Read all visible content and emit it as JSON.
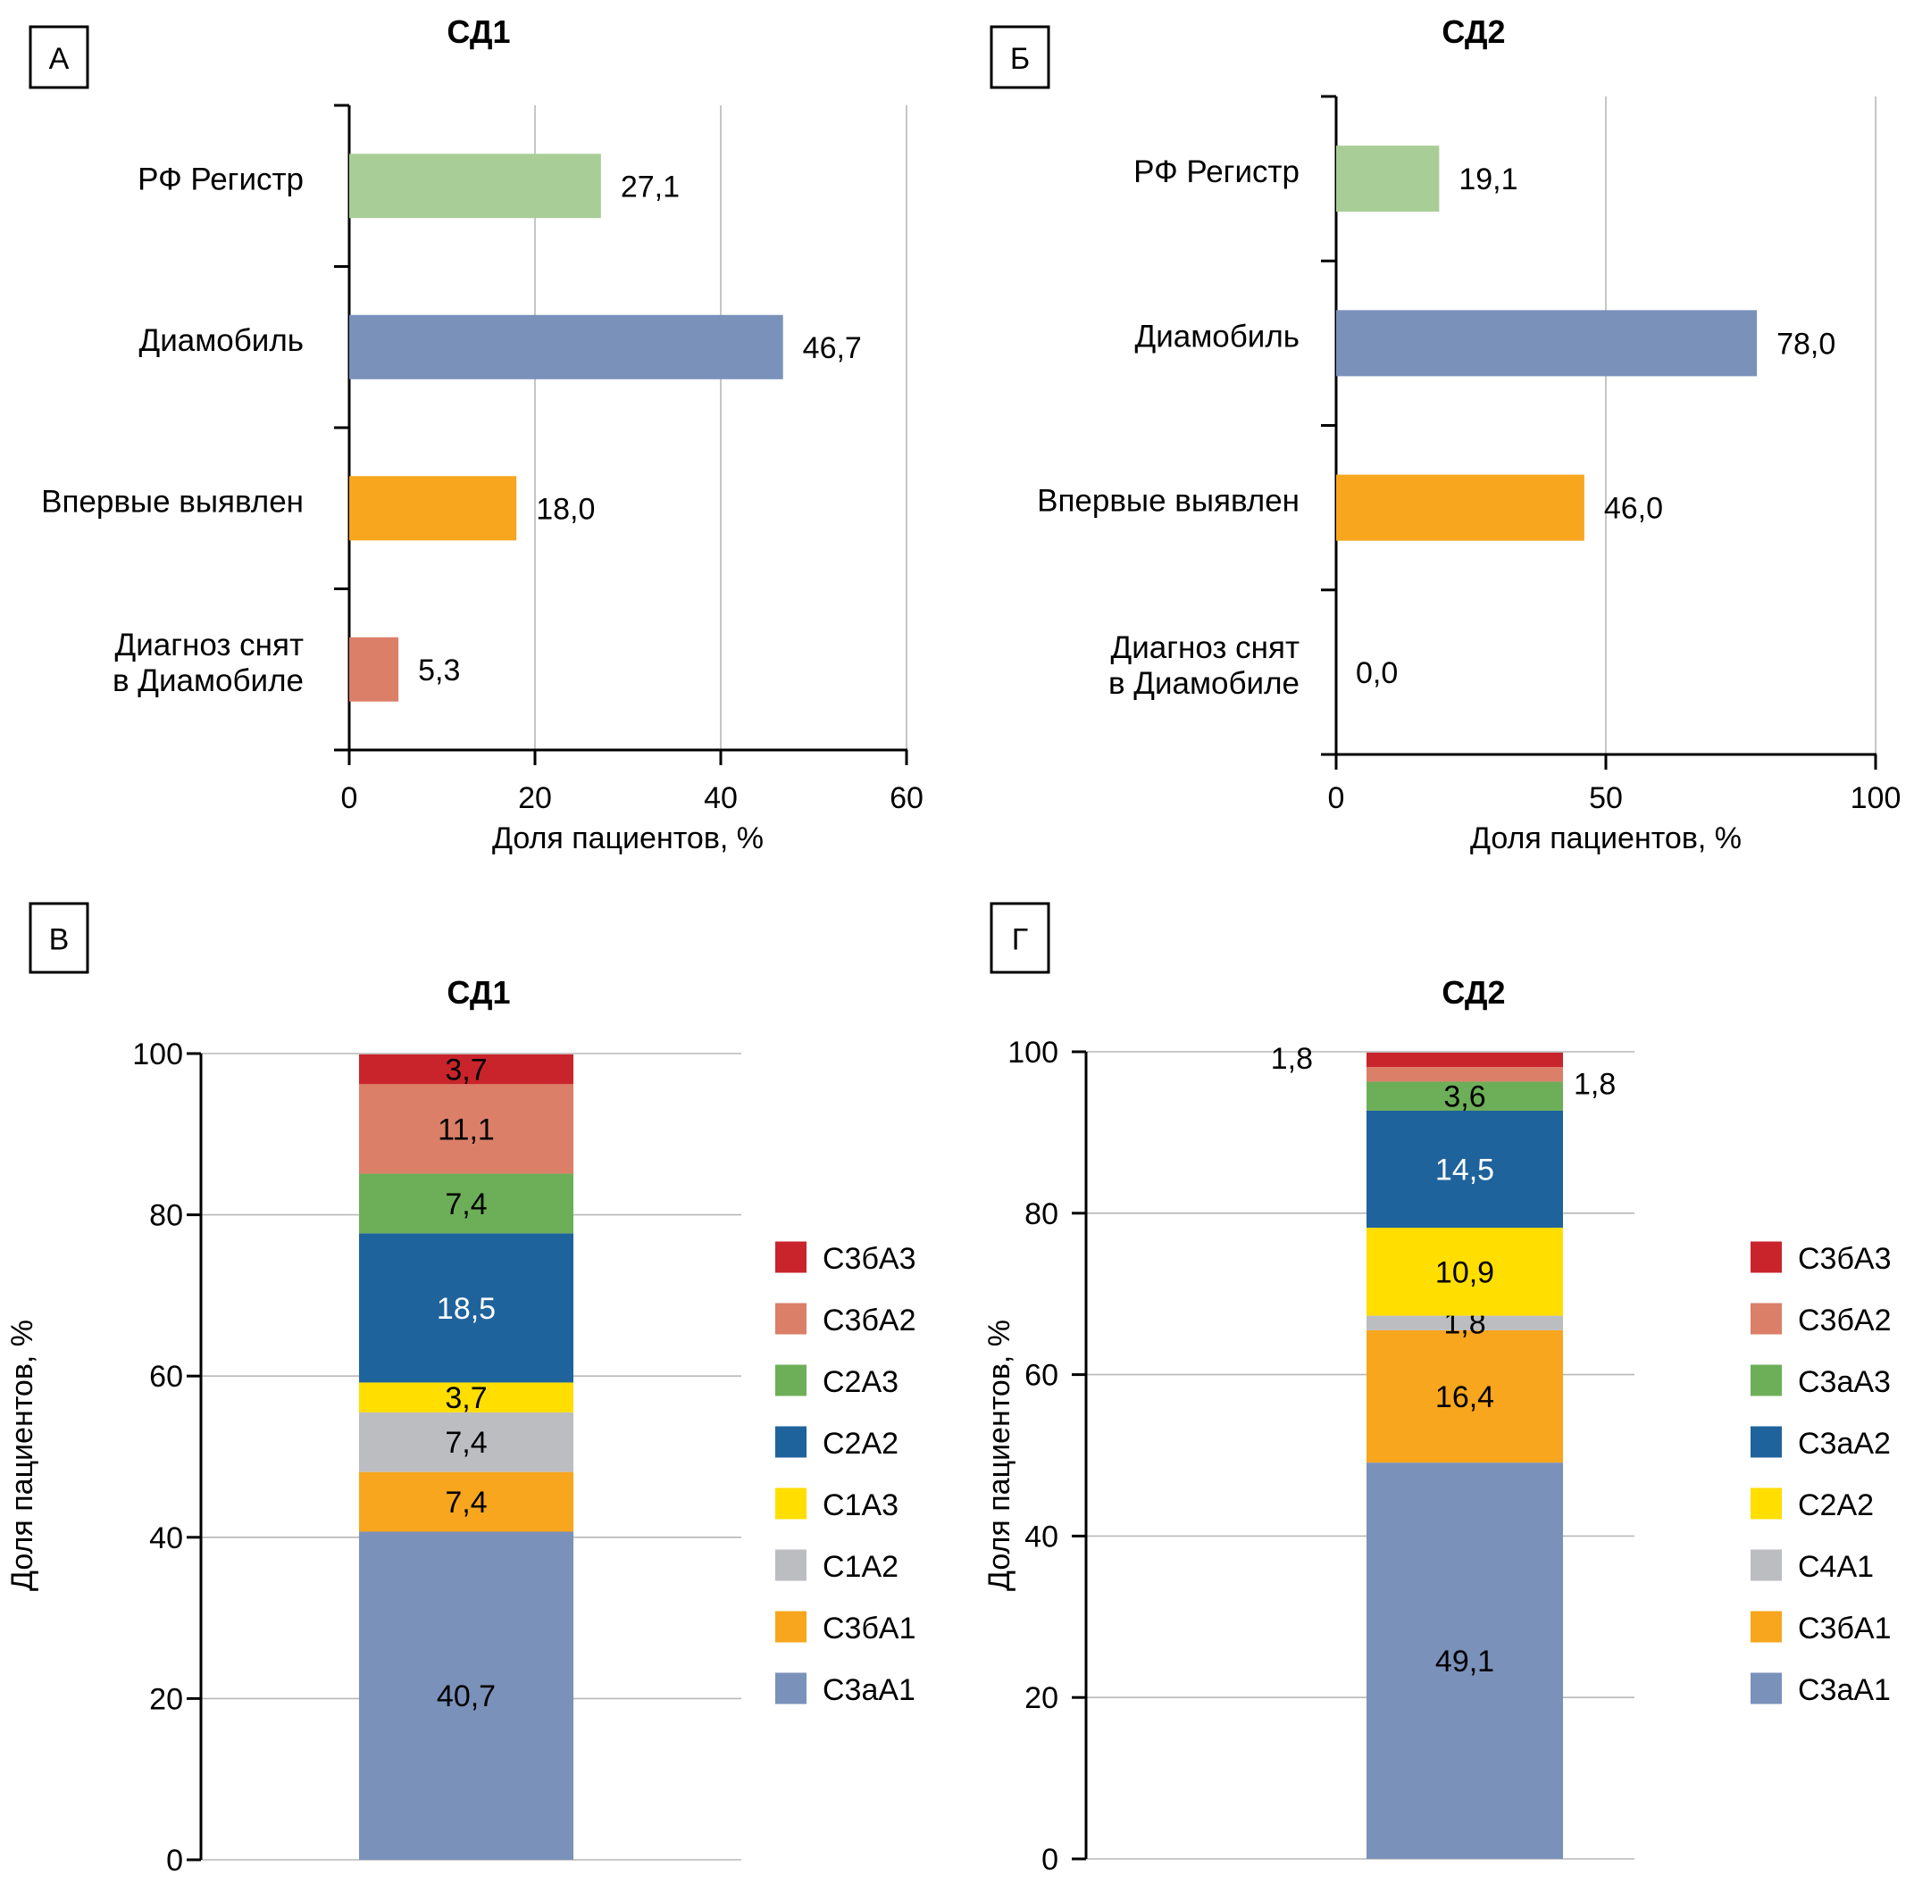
{
  "chart_data": [
    {
      "panel": "А",
      "type": "bar",
      "orientation": "horizontal",
      "title": "СД1",
      "categories": [
        "РФ Регистр",
        "Диамобиль",
        "Впервые выявлен",
        "Диагноз снят в Диамобиле"
      ],
      "category_lines": [
        [
          "РФ Регистр"
        ],
        [
          "Диамобиль"
        ],
        [
          "Впервые выявлен"
        ],
        [
          "Диагноз снят",
          "в Диамобиле"
        ]
      ],
      "values": [
        27.1,
        46.7,
        18.0,
        5.3
      ],
      "value_labels": [
        "27,1",
        "46,7",
        "18,0",
        "5,3"
      ],
      "colors": [
        "#a9cd96",
        "#7a91ba",
        "#f7a61e",
        "#db7f68"
      ],
      "xlabel": "Доля пациентов, %",
      "ylabel": "",
      "xlim": [
        0,
        60
      ],
      "xticks": [
        0,
        20,
        40,
        60
      ],
      "xtick_labels": [
        "0",
        "20",
        "40",
        "60"
      ],
      "grid": "vertical"
    },
    {
      "panel": "Б",
      "type": "bar",
      "orientation": "horizontal",
      "title": "СД2",
      "categories": [
        "РФ Регистр",
        "Диамобиль",
        "Впервые выявлен",
        "Диагноз снят в Диамобиле"
      ],
      "category_lines": [
        [
          "РФ Регистр"
        ],
        [
          "Диамобиль"
        ],
        [
          "Впервые выявлен"
        ],
        [
          "Диагноз снят",
          "в Диамобиле"
        ]
      ],
      "values": [
        19.1,
        78.0,
        46.0,
        0.0
      ],
      "value_labels": [
        "19,1",
        "78,0",
        "46,0",
        "0,0"
      ],
      "colors": [
        "#a9cd96",
        "#7a91ba",
        "#f7a61e",
        "#db7f68"
      ],
      "xlabel": "Доля пациентов, %",
      "ylabel": "",
      "xlim": [
        0,
        100
      ],
      "xticks": [
        0,
        50,
        100
      ],
      "xtick_labels": [
        "0",
        "50",
        "100"
      ],
      "grid": "vertical"
    },
    {
      "panel": "В",
      "type": "bar",
      "orientation": "vertical-stacked",
      "title": "СД1",
      "categories": [
        ""
      ],
      "series": [
        {
          "name": "С3аА1",
          "values": [
            40.7
          ],
          "label": "40,7",
          "color": "#7a91ba",
          "label_color": "#000000"
        },
        {
          "name": "С3бА1",
          "values": [
            7.4
          ],
          "label": "7,4",
          "color": "#f7a61e",
          "label_color": "#000000"
        },
        {
          "name": "С1А2",
          "values": [
            7.4
          ],
          "label": "7,4",
          "color": "#bcbdc0",
          "label_color": "#000000"
        },
        {
          "name": "С1А3",
          "values": [
            3.7
          ],
          "label": "3,7",
          "color": "#ffde00",
          "label_color": "#000000"
        },
        {
          "name": "С2А2",
          "values": [
            18.5
          ],
          "label": "18,5",
          "color": "#1f639c",
          "label_color": "#ffffff"
        },
        {
          "name": "С2А3",
          "values": [
            7.4
          ],
          "label": "7,4",
          "color": "#6daf58",
          "label_color": "#000000"
        },
        {
          "name": "С3бА2",
          "values": [
            11.1
          ],
          "label": "11,1",
          "color": "#db7f68",
          "label_color": "#000000"
        },
        {
          "name": "С3бА3",
          "values": [
            3.7
          ],
          "label": "3,7",
          "color": "#c9242c",
          "label_color": "#000000"
        }
      ],
      "legend_order": [
        "С3бА3",
        "С3бА2",
        "С2А3",
        "С2А2",
        "С1А3",
        "С1А2",
        "С3бА1",
        "С3аА1"
      ],
      "legend_position": "right",
      "xlabel": "",
      "ylabel": "Доля пациентов, %",
      "ylim": [
        0,
        100
      ],
      "yticks": [
        0,
        20,
        40,
        60,
        80,
        100
      ],
      "ytick_labels": [
        "0",
        "20",
        "40",
        "60",
        "80",
        "100"
      ],
      "grid": "horizontal"
    },
    {
      "panel": "Г",
      "type": "bar",
      "orientation": "vertical-stacked",
      "title": "СД2",
      "categories": [
        ""
      ],
      "series": [
        {
          "name": "С3аА1",
          "values": [
            49.1
          ],
          "label": "49,1",
          "color": "#7a91ba",
          "label_color": "#000000"
        },
        {
          "name": "С3бА1",
          "values": [
            16.4
          ],
          "label": "16,4",
          "color": "#f7a61e",
          "label_color": "#000000"
        },
        {
          "name": "С4А1",
          "values": [
            1.8
          ],
          "label": "1,8",
          "color": "#bcbdc0",
          "label_color": "#000000"
        },
        {
          "name": "С2А2",
          "values": [
            10.9
          ],
          "label": "10,9",
          "color": "#ffde00",
          "label_color": "#000000"
        },
        {
          "name": "С3аА2",
          "values": [
            14.5
          ],
          "label": "14,5",
          "color": "#1f639c",
          "label_color": "#ffffff"
        },
        {
          "name": "С3аА3",
          "values": [
            3.6
          ],
          "label": "3,6",
          "color": "#6daf58",
          "label_color": "#000000"
        },
        {
          "name": "С3бА2",
          "values": [
            1.8
          ],
          "label": "1,8",
          "color": "#db7f68",
          "label_color": "#000000",
          "label_side": "right"
        },
        {
          "name": "С3бА3",
          "values": [
            1.8
          ],
          "label": "1,8",
          "color": "#c9242c",
          "label_color": "#000000",
          "label_side": "left"
        }
      ],
      "legend_order": [
        "С3бА3",
        "С3бА2",
        "С3аА3",
        "С3аА2",
        "С2А2",
        "С4А1",
        "С3бА1",
        "С3аА1"
      ],
      "legend_position": "right",
      "xlabel": "",
      "ylabel": "Доля пациентов, %",
      "ylim": [
        0,
        100
      ],
      "yticks": [
        0,
        20,
        40,
        60,
        80,
        100
      ],
      "ytick_labels": [
        "0",
        "20",
        "40",
        "60",
        "80",
        "100"
      ],
      "grid": "horizontal"
    }
  ]
}
